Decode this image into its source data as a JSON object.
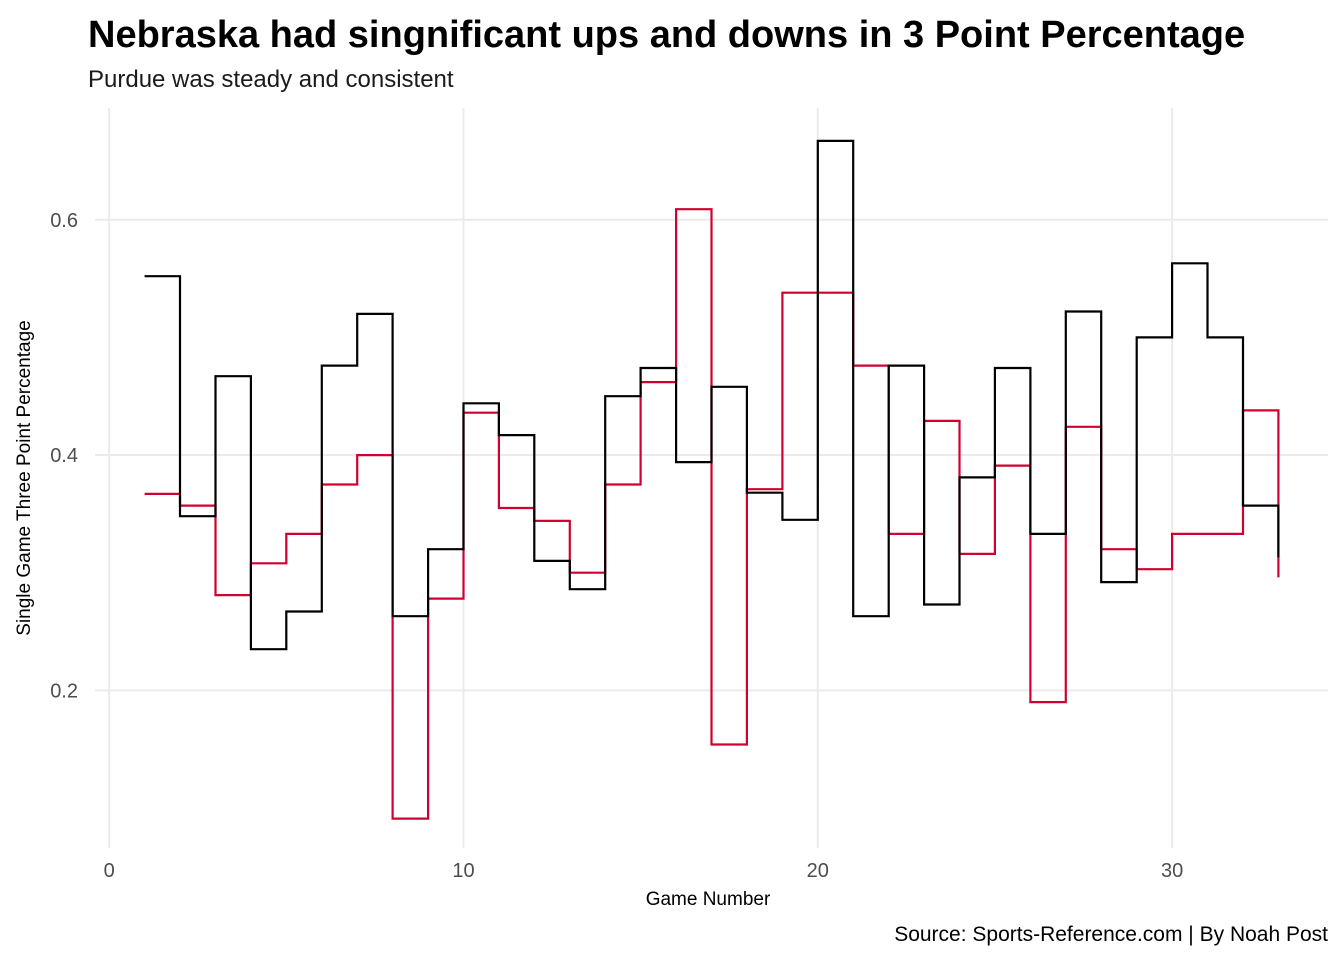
{
  "chart_data": {
    "type": "line",
    "step": "hv",
    "title": "Nebraska had singnificant ups and downs in 3 Point Percentage",
    "subtitle": "Purdue was steady and consistent",
    "caption": "Source: Sports-Reference.com | By Noah Post",
    "xlabel": "Game Number",
    "ylabel": "Single Game Three Point Percentage",
    "xlim": [
      -0.4,
      34.4
    ],
    "ylim": [
      0.066,
      0.695
    ],
    "x_ticks": [
      0,
      10,
      20,
      30
    ],
    "x_tick_labels": [
      "0",
      "10",
      "20",
      "30"
    ],
    "y_ticks": [
      0.2,
      0.4,
      0.6
    ],
    "y_tick_labels": [
      "0.2",
      "0.4",
      "0.6"
    ],
    "grid": true,
    "legend": "none",
    "x": [
      1,
      2,
      3,
      4,
      5,
      6,
      7,
      8,
      9,
      10,
      11,
      12,
      13,
      14,
      15,
      16,
      17,
      18,
      19,
      20,
      21,
      22,
      23,
      24,
      25,
      26,
      27,
      28,
      29,
      30,
      31,
      32,
      33
    ],
    "series": [
      {
        "color": "#d00031",
        "values": [
          0.367,
          0.357,
          0.281,
          0.308,
          0.333,
          0.375,
          0.4,
          0.091,
          0.278,
          0.436,
          0.355,
          0.344,
          0.3,
          0.375,
          0.462,
          0.609,
          0.154,
          0.371,
          0.538,
          0.538,
          0.476,
          0.333,
          0.429,
          0.316,
          0.391,
          0.19,
          0.424,
          0.32,
          0.303,
          0.333,
          0.333,
          0.438,
          0.296
        ]
      },
      {
        "color": "#000000",
        "values": [
          0.552,
          0.348,
          0.467,
          0.235,
          0.267,
          0.476,
          0.52,
          0.263,
          0.32,
          0.444,
          0.417,
          0.31,
          0.286,
          0.45,
          0.474,
          0.394,
          0.458,
          0.368,
          0.345,
          0.667,
          0.263,
          0.476,
          0.273,
          0.381,
          0.474,
          0.333,
          0.522,
          0.292,
          0.5,
          0.563,
          0.5,
          0.357,
          0.313
        ]
      }
    ]
  }
}
